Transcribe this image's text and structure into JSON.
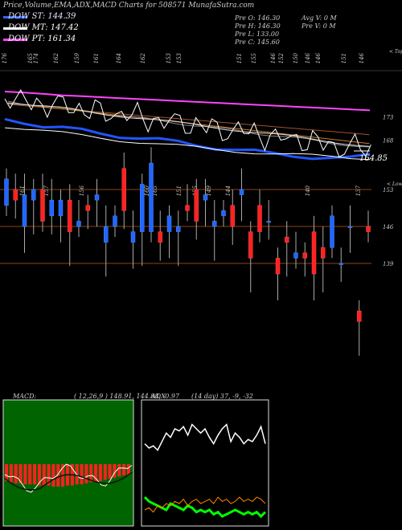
{
  "title": "Price,Volume,EMA,ADX,MACD Charts for 508571 MunafaSutra.com",
  "legend": [
    {
      "label": "DOW ST: 144.39",
      "color": "#3366ff"
    },
    {
      "label": "DOW MT: 147.42",
      "color": "#ffffff"
    },
    {
      "label": "DOW PT: 161.34",
      "color": "#ff44ff"
    }
  ],
  "info": {
    "open": "Pre  O: 146.30",
    "high": "Pre  H: 146.30",
    "low": "Pre  L: 133.00",
    "close": "Pre  C: 145.60",
    "avg_vol": "Avg V: 0  M",
    "pre_vol": "Pre  V: 0  M"
  },
  "upper_panel": {
    "top_labels": [
      "176",
      "165",
      "174",
      "162",
      "159",
      "161",
      "164",
      "162",
      "153",
      "153",
      "151",
      "155",
      "146",
      "152",
      "150",
      "146",
      "146",
      "151",
      "146"
    ],
    "tag": "< Tops",
    "right_levels": [
      "173",
      "168"
    ],
    "last_value": "164.85"
  },
  "lower_panel": {
    "top_labels": [
      "161",
      "157",
      "156",
      "160",
      "165",
      "151",
      "155",
      "149",
      "144",
      "140",
      "137"
    ],
    "tag": "< Lows",
    "right_levels": [
      "153",
      "146",
      "139"
    ]
  },
  "macd": {
    "label": "MACD:",
    "values": "( 12,26,9 ) 148.91, 144.88, -0.97"
  },
  "adx": {
    "label": "ADX",
    "values": "(14  day) 37, -9, -32"
  },
  "chart_data": [
    {
      "type": "line",
      "title": "Price,Volume,EMA,ADX,MACD Charts for 508571 MunafaSutra.com",
      "series": [
        {
          "name": "DOW ST: 144.39",
          "color": "#3366ff",
          "values": [
            172.5,
            172,
            171,
            170.5,
            170,
            169.5,
            169,
            168.5,
            168,
            167.5,
            167,
            166.5,
            166,
            165.5,
            165,
            164.8,
            164.5,
            164.2,
            164,
            164.85
          ]
        },
        {
          "name": "DOW MT: 147.42",
          "color": "#ffffff",
          "values": [
            171,
            170.5,
            170,
            169.5,
            169,
            168.5,
            168,
            167.6,
            167.2,
            166.8,
            166.4,
            166,
            165.7,
            165.4,
            165.1,
            164.9,
            164.7,
            164.5,
            164.3,
            164.2
          ]
        },
        {
          "name": "DOW PT: 161.34",
          "color": "#ff44ff",
          "values": [
            177,
            176.8,
            176.5,
            176.2,
            176,
            175.8,
            175.6,
            175.4,
            175.2,
            175,
            174.8,
            174.6,
            174.4,
            174.2,
            174,
            173.8,
            173.6,
            173.4,
            173.2,
            173
          ]
        }
      ],
      "y_right_ticks": [
        173,
        168
      ]
    },
    {
      "type": "bar",
      "candles": [
        {
          "o": 150,
          "c": 155
        },
        {
          "o": 153,
          "c": 151
        },
        {
          "o": 146,
          "c": 152
        },
        {
          "o": 151,
          "c": 153
        },
        {
          "o": 153,
          "c": 147
        },
        {
          "o": 148,
          "c": 151
        },
        {
          "o": 148,
          "c": 151
        },
        {
          "o": 151,
          "c": 145
        },
        {
          "o": 146,
          "c": 147
        },
        {
          "o": 150,
          "c": 149
        },
        {
          "o": 151,
          "c": 152
        },
        {
          "o": 143,
          "c": 146
        },
        {
          "o": 146,
          "c": 148
        },
        {
          "o": 157,
          "c": 149
        },
        {
          "o": 143,
          "c": 145
        },
        {
          "o": 145,
          "c": 154
        },
        {
          "o": 145,
          "c": 158
        },
        {
          "o": 145,
          "c": 143
        },
        {
          "o": 145,
          "c": 148
        },
        {
          "o": 145,
          "c": 146
        },
        {
          "o": 150,
          "c": 149
        },
        {
          "o": 153,
          "c": 147
        },
        {
          "o": 151,
          "c": 152
        },
        {
          "o": 146,
          "c": 147
        },
        {
          "o": 148,
          "c": 149
        },
        {
          "o": 150,
          "c": 146
        },
        {
          "o": 152,
          "c": 153
        },
        {
          "o": 145,
          "c": 140
        },
        {
          "o": 150,
          "c": 145
        },
        {
          "o": 147,
          "c": 147
        },
        {
          "o": 140,
          "c": 137
        },
        {
          "o": 144,
          "c": 143
        },
        {
          "o": 140,
          "c": 141
        },
        {
          "o": 141,
          "c": 140
        },
        {
          "o": 145,
          "c": 137
        },
        {
          "o": 142,
          "c": 140
        },
        {
          "o": 142,
          "c": 148
        },
        {
          "o": 139,
          "c": 139
        },
        {
          "o": 146,
          "c": 146
        },
        {
          "o": 130,
          "c": 128
        },
        {
          "o": 146,
          "c": 145
        }
      ],
      "y_right_ticks": [
        153,
        146,
        139
      ]
    },
    {
      "type": "bar",
      "title": "MACD",
      "values": [
        -1.5,
        -1.6,
        -1.7,
        -1.7,
        -1.8,
        -1.8,
        -1.8,
        -1.9,
        -1.9,
        -1.9,
        -2,
        -2,
        -2,
        -1.9,
        -1.9,
        -1.8,
        -1.8,
        -1.7,
        -1.6,
        -1.6,
        -1.5,
        -1.4,
        -1.3,
        -1.2,
        -1.1,
        -1,
        -0.97
      ]
    },
    {
      "type": "line",
      "title": "ADX",
      "series": [
        {
          "name": "ADX",
          "color": "#ffffff",
          "values": [
            37,
            35,
            36,
            34,
            38,
            42,
            40,
            44,
            43,
            45,
            41,
            46,
            44,
            42,
            44,
            40,
            37,
            41,
            44,
            46,
            38,
            42,
            40,
            37,
            39,
            38,
            41,
            45,
            37
          ]
        },
        {
          "name": "+DI",
          "color": "#00ff00",
          "values": [
            12,
            10,
            9,
            8,
            7,
            6,
            9,
            8,
            7,
            6,
            8,
            7,
            5,
            6,
            5,
            6,
            4,
            5,
            3,
            4,
            5,
            6,
            5,
            4,
            5,
            4,
            5,
            3,
            5
          ]
        },
        {
          "name": "-DI",
          "color": "#ff8800",
          "values": [
            6,
            7,
            5,
            8,
            7,
            9,
            8,
            10,
            9,
            11,
            8,
            10,
            11,
            9,
            10,
            11,
            9,
            12,
            10,
            11,
            9,
            10,
            12,
            10,
            11,
            10,
            12,
            11,
            9
          ]
        }
      ]
    }
  ]
}
